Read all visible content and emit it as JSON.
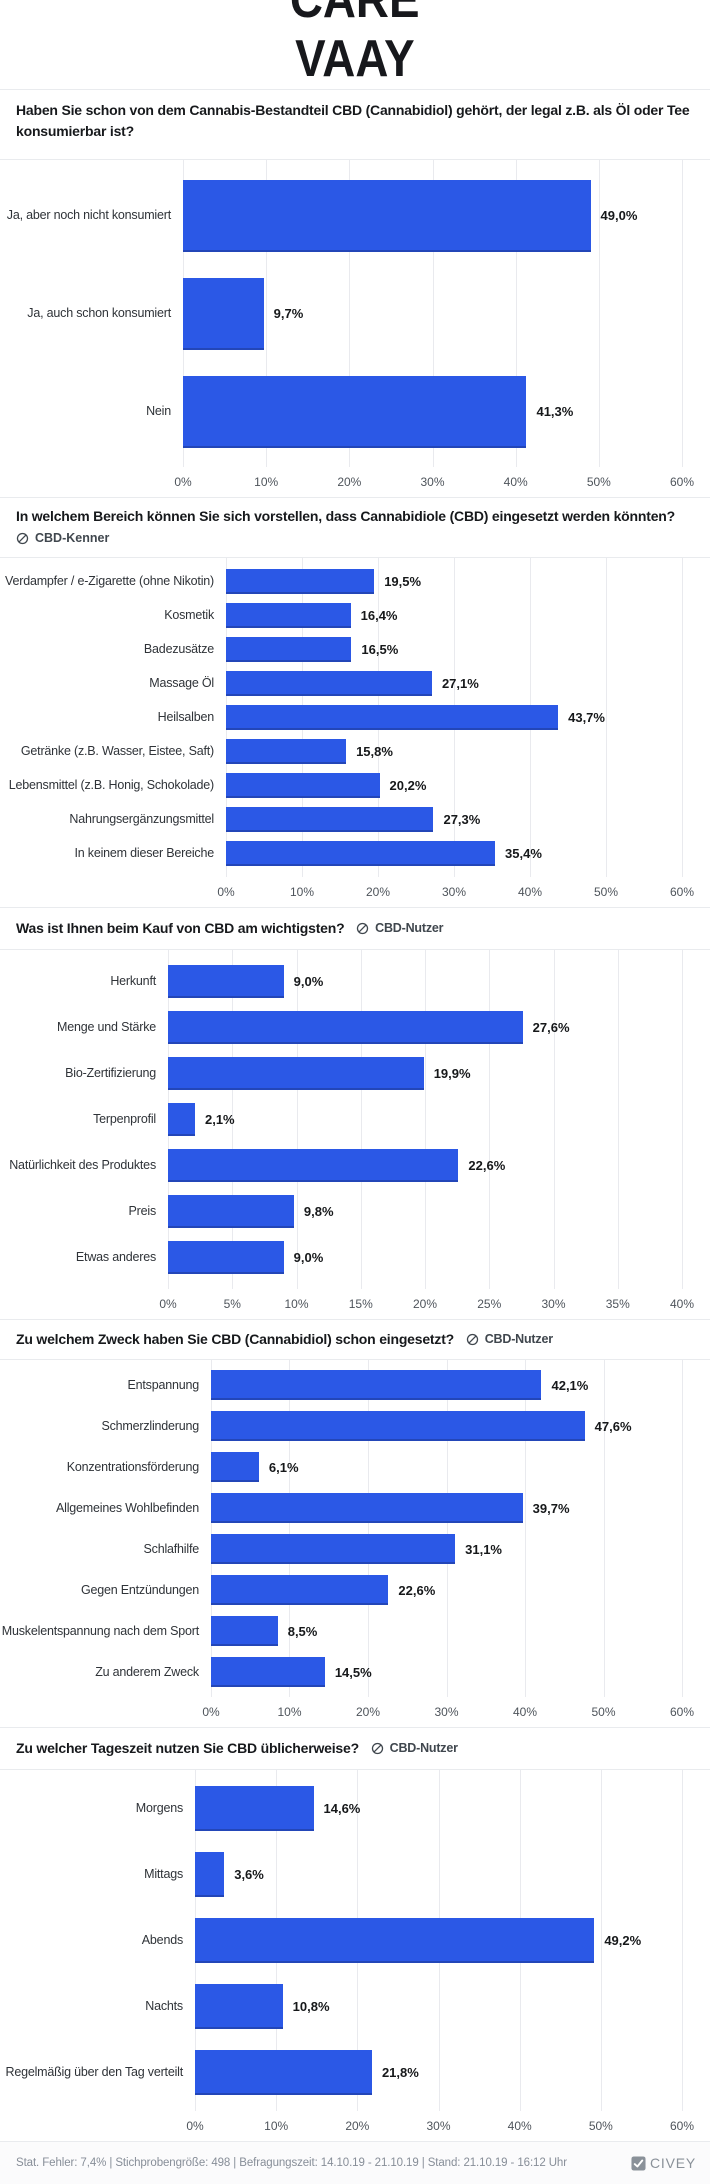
{
  "logo": {
    "line1": "CARE",
    "line2": "VAAY"
  },
  "colors": {
    "bar": "#2b58e6",
    "grid": "#e9eaee",
    "title_text": "#17191c",
    "footer_text": "#878e98"
  },
  "icons": {
    "audience": "circle-slash-filter-icon",
    "brand": "civey-check-icon"
  },
  "chart_data": [
    {
      "type": "bar",
      "title": "Haben Sie schon von dem Cannabis-Bestandteil CBD (Cannabidiol) gehört, der legal z.B. als Öl oder Tee konsumierbar ist?",
      "audience": null,
      "categories": [
        "Ja, aber noch nicht konsumiert",
        "Ja, auch schon konsumiert",
        "Nein"
      ],
      "values": [
        49.0,
        9.7,
        41.3
      ],
      "value_labels": [
        "49,0%",
        "9,7%",
        "41,3%"
      ],
      "xlim": [
        0,
        60
      ],
      "ticks": [
        "0%",
        "10%",
        "20%",
        "30%",
        "40%",
        "50%",
        "60%"
      ],
      "orientation": "horizontal",
      "grid": "vertical-on"
    },
    {
      "type": "bar",
      "title": "In welchem Bereich können Sie sich vorstellen, dass Cannabidiole (CBD) eingesetzt werden könnten?",
      "audience": "CBD-Kenner",
      "categories": [
        "Verdampfer / e-Zigarette (ohne Nikotin)",
        "Kosmetik",
        "Badezusätze",
        "Massage Öl",
        "Heilsalben",
        "Getränke (z.B. Wasser, Eistee, Saft)",
        "Lebensmittel (z.B. Honig, Schokolade)",
        "Nahrungsergänzungsmittel",
        "In keinem dieser Bereiche"
      ],
      "values": [
        19.5,
        16.4,
        16.5,
        27.1,
        43.7,
        15.8,
        20.2,
        27.3,
        35.4
      ],
      "value_labels": [
        "19,5%",
        "16,4%",
        "16,5%",
        "27,1%",
        "43,7%",
        "15,8%",
        "20,2%",
        "27,3%",
        "35,4%"
      ],
      "xlim": [
        0,
        60
      ],
      "ticks": [
        "0%",
        "10%",
        "20%",
        "30%",
        "40%",
        "50%",
        "60%"
      ],
      "orientation": "horizontal",
      "grid": "vertical-on"
    },
    {
      "type": "bar",
      "title": "Was ist Ihnen beim Kauf von CBD am wichtigsten?",
      "audience": "CBD-Nutzer",
      "categories": [
        "Herkunft",
        "Menge und Stärke",
        "Bio-Zertifizierung",
        "Terpenprofil",
        "Natürlichkeit des Produktes",
        "Preis",
        "Etwas anderes"
      ],
      "values": [
        9.0,
        27.6,
        19.9,
        2.1,
        22.6,
        9.8,
        9.0
      ],
      "value_labels": [
        "9,0%",
        "27,6%",
        "19,9%",
        "2,1%",
        "22,6%",
        "9,8%",
        "9,0%"
      ],
      "xlim": [
        0,
        40
      ],
      "ticks": [
        "0%",
        "5%",
        "10%",
        "15%",
        "20%",
        "25%",
        "30%",
        "35%",
        "40%"
      ],
      "orientation": "horizontal",
      "grid": "vertical-on"
    },
    {
      "type": "bar",
      "title": "Zu welchem Zweck haben Sie CBD (Cannabidiol) schon eingesetzt?",
      "audience": "CBD-Nutzer",
      "categories": [
        "Entspannung",
        "Schmerzlinderung",
        "Konzentrationsförderung",
        "Allgemeines Wohlbefinden",
        "Schlafhilfe",
        "Gegen Entzündungen",
        "Muskelentspannung nach dem Sport",
        "Zu anderem Zweck"
      ],
      "values": [
        42.1,
        47.6,
        6.1,
        39.7,
        31.1,
        22.6,
        8.5,
        14.5
      ],
      "value_labels": [
        "42,1%",
        "47,6%",
        "6,1%",
        "39,7%",
        "31,1%",
        "22,6%",
        "8,5%",
        "14,5%"
      ],
      "xlim": [
        0,
        60
      ],
      "ticks": [
        "0%",
        "10%",
        "20%",
        "30%",
        "40%",
        "50%",
        "60%"
      ],
      "orientation": "horizontal",
      "grid": "vertical-on"
    },
    {
      "type": "bar",
      "title": "Zu welcher Tageszeit nutzen Sie CBD üblicherweise?",
      "audience": "CBD-Nutzer",
      "categories": [
        "Morgens",
        "Mittags",
        "Abends",
        "Nachts",
        "Regelmäßig über den Tag verteilt"
      ],
      "values": [
        14.6,
        3.6,
        49.2,
        10.8,
        21.8
      ],
      "value_labels": [
        "14,6%",
        "3,6%",
        "49,2%",
        "10,8%",
        "21,8%"
      ],
      "xlim": [
        0,
        60
      ],
      "ticks": [
        "0%",
        "10%",
        "20%",
        "30%",
        "40%",
        "50%",
        "60%"
      ],
      "orientation": "horizontal",
      "grid": "vertical-on"
    }
  ],
  "footer": {
    "stats": "Stat. Fehler: 7,4% | Stichprobengröße: 498 | Befragungszeit: 14.10.19 - 21.10.19 | Stand: 21.10.19 - 16:12 Uhr",
    "brand": "CIVEY"
  }
}
